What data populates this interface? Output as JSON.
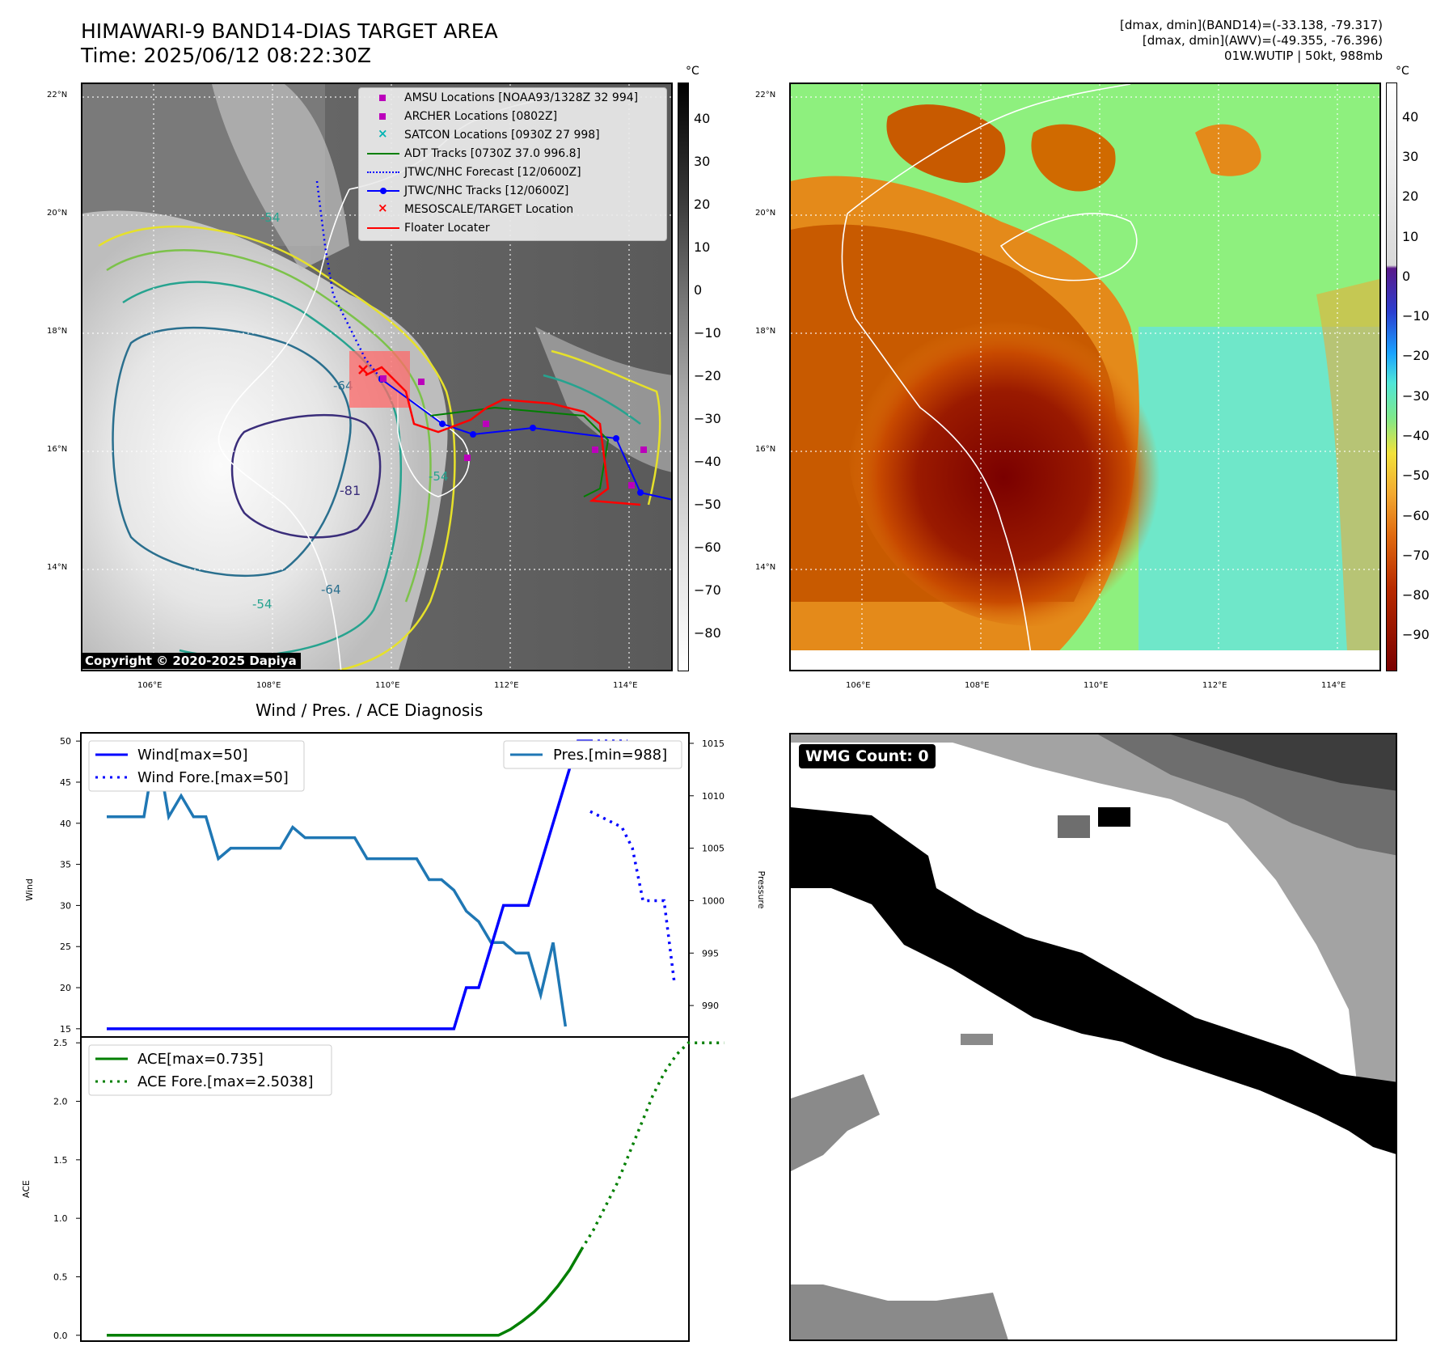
{
  "header": {
    "title_line1": "HIMAWARI-9 BAND14-DIAS TARGET AREA",
    "title_line2": "Time: 2025/06/12 08:22:30Z",
    "info_line1": "[dmax, dmin](BAND14)=(-33.138, -79.317)",
    "info_line2": "[dmax, dmin](AWV)=(-49.355, -76.396)",
    "info_line3": "01W.WUTIP | 50kt, 988mb"
  },
  "maps": {
    "lat_labels": [
      "22°N",
      "20°N",
      "18°N",
      "16°N",
      "14°N"
    ],
    "lon_labels": [
      "106°E",
      "108°E",
      "110°E",
      "112°E",
      "114°E"
    ],
    "contour_labels": [
      "-54",
      "-64",
      "-81",
      "-54",
      "-64",
      "-54"
    ],
    "copyright": "Copyright © 2020-2025 Dapiya"
  },
  "colorbar_left": {
    "unit": "°C",
    "ticks": [
      "40",
      "30",
      "20",
      "10",
      "0",
      "−10",
      "−20",
      "−30",
      "−40",
      "−50",
      "−60",
      "−70",
      "−80"
    ]
  },
  "colorbar_right": {
    "unit": "°C",
    "ticks": [
      "40",
      "30",
      "20",
      "10",
      "0",
      "−10",
      "−20",
      "−30",
      "−40",
      "−50",
      "−60",
      "−70",
      "−80",
      "−90"
    ]
  },
  "legend": {
    "items": [
      {
        "label": "AMSU Locations [NOAA93/1328Z 32 994]",
        "color": "#bb00bb",
        "marker": "square"
      },
      {
        "label": "ARCHER Locations [0802Z]",
        "color": "#bb00bb",
        "marker": "square"
      },
      {
        "label": "SATCON Locations [0930Z 27 998]",
        "color": "#00b3b3",
        "marker": "x"
      },
      {
        "label": "ADT Tracks [0730Z 37.0 996.8]",
        "color": "#007f00",
        "marker": "line"
      },
      {
        "label": "JTWC/NHC Forecast [12/0600Z]",
        "color": "#0000ff",
        "marker": "dotted"
      },
      {
        "label": "JTWC/NHC Tracks [12/0600Z]",
        "color": "#0000ff",
        "marker": "line-dot"
      },
      {
        "label": "MESOSCALE/TARGET Location",
        "color": "#ff0000",
        "marker": "x"
      },
      {
        "label": "Floater Locater",
        "color": "#ff0000",
        "marker": "line"
      }
    ]
  },
  "diag": {
    "title": "Wind / Pres. / ACE Diagnosis",
    "wind_ylabel": "Wind",
    "pres_ylabel": "Pressure",
    "ace_ylabel": "ACE",
    "wind_legend": [
      "Wind[max=50]",
      "Wind Fore.[max=50]"
    ],
    "pres_legend": "Pres.[min=988]",
    "ace_legend": [
      "ACE[max=0.735]",
      "ACE Fore.[max=2.5038]"
    ]
  },
  "wmg": {
    "label": "WMG Count: 0"
  },
  "chart_data": [
    {
      "type": "line",
      "name": "wind",
      "ylim": [
        14,
        51
      ],
      "yticks": [
        15,
        20,
        25,
        30,
        35,
        40,
        45,
        50
      ],
      "observed": [
        15,
        15,
        15,
        15,
        15,
        15,
        15,
        15,
        15,
        15,
        15,
        15,
        15,
        15,
        15,
        15,
        15,
        15,
        15,
        15,
        15,
        15,
        15,
        15,
        15,
        15,
        15,
        15,
        15,
        20,
        20,
        25,
        30,
        30,
        30,
        35,
        40,
        45,
        50,
        50
      ],
      "forecast": [
        50,
        50,
        50,
        50,
        50,
        50,
        50
      ]
    },
    {
      "type": "line",
      "name": "pressure",
      "ylim": [
        987,
        1016
      ],
      "yticks": [
        990,
        995,
        1000,
        1005,
        1010,
        1015
      ],
      "observed": [
        1008,
        1008,
        1008,
        1008,
        1015,
        1008,
        1010,
        1008,
        1008,
        1004,
        1005,
        1005,
        1005,
        1005,
        1005,
        1007,
        1006,
        1006,
        1006,
        1006,
        1006,
        1004,
        1004,
        1004,
        1004,
        1004,
        1002,
        1002,
        1001,
        999,
        998,
        996,
        996,
        995,
        995,
        991,
        996,
        988
      ],
      "forecast": [
        1008.5,
        1008,
        1007.5,
        1007,
        1005,
        1000,
        1000,
        1000,
        992
      ]
    },
    {
      "type": "line",
      "name": "ace",
      "ylim": [
        -0.05,
        2.55
      ],
      "yticks": [
        0.0,
        0.5,
        1.0,
        1.5,
        2.0,
        2.5
      ],
      "observed": [
        0,
        0,
        0,
        0,
        0,
        0,
        0,
        0,
        0,
        0,
        0,
        0,
        0,
        0,
        0,
        0,
        0,
        0,
        0,
        0,
        0,
        0,
        0,
        0,
        0,
        0,
        0,
        0,
        0,
        0,
        0,
        0,
        0,
        0,
        0.05,
        0.12,
        0.2,
        0.3,
        0.42,
        0.56,
        0.735
      ],
      "forecast": [
        0.735,
        0.9,
        1.1,
        1.3,
        1.55,
        1.8,
        2.05,
        2.25,
        2.4,
        2.5,
        2.5,
        2.5,
        2.5
      ]
    }
  ]
}
